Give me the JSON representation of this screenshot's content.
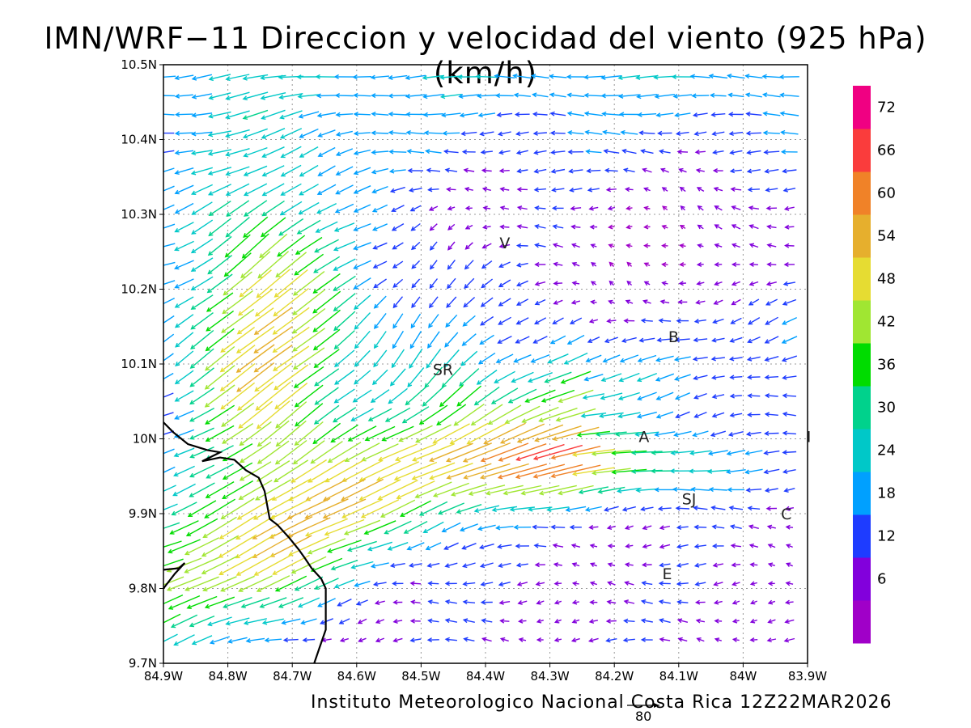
{
  "title": "IMN/WRF−11 Direccion y velocidad del viento (925 hPa)(km/h)",
  "credit": "Instituto Meteorologico Nacional Costa Rica 12Z22MAR2026",
  "reference_vector": {
    "value": "80"
  },
  "map": {
    "lon_range": [
      -84.9,
      -83.9
    ],
    "lat_range": [
      9.7,
      10.5
    ],
    "lon_ticks": [
      {
        "value": -84.9,
        "label": "84.9W"
      },
      {
        "value": -84.8,
        "label": "84.8W"
      },
      {
        "value": -84.7,
        "label": "84.7W"
      },
      {
        "value": -84.6,
        "label": "84.6W"
      },
      {
        "value": -84.5,
        "label": "84.5W"
      },
      {
        "value": -84.4,
        "label": "84.4W"
      },
      {
        "value": -84.3,
        "label": "84.3W"
      },
      {
        "value": -84.2,
        "label": "84.2W"
      },
      {
        "value": -84.1,
        "label": "84.1W"
      },
      {
        "value": -84.0,
        "label": "84W"
      },
      {
        "value": -83.9,
        "label": "83.9W"
      }
    ],
    "lat_ticks": [
      {
        "value": 9.7,
        "label": "9.7N"
      },
      {
        "value": 9.8,
        "label": "9.8N"
      },
      {
        "value": 9.9,
        "label": "9.9N"
      },
      {
        "value": 10.0,
        "label": "10N"
      },
      {
        "value": 10.1,
        "label": "10.1N"
      },
      {
        "value": 10.2,
        "label": "10.2N"
      },
      {
        "value": 10.3,
        "label": "10.3N"
      },
      {
        "value": 10.4,
        "label": "10.4N"
      },
      {
        "value": 10.5,
        "label": "10.5N"
      }
    ],
    "stations": [
      {
        "label": "V",
        "lon": -84.37,
        "lat": 10.262
      },
      {
        "label": "B",
        "lon": -84.108,
        "lat": 10.137
      },
      {
        "label": "SR",
        "lon": -84.466,
        "lat": 10.093
      },
      {
        "label": "A",
        "lon": -84.154,
        "lat": 10.003
      },
      {
        "label": "SJ",
        "lon": -84.084,
        "lat": 9.92
      },
      {
        "label": "C",
        "lon": -83.933,
        "lat": 9.9
      },
      {
        "label": "E",
        "lon": -84.118,
        "lat": 9.82
      },
      {
        "label": "I",
        "lon": -83.898,
        "lat": 10.003
      }
    ],
    "coastline": [
      [
        -84.9,
        10.022
      ],
      [
        -84.885,
        10.009
      ],
      [
        -84.862,
        9.993
      ],
      [
        -84.832,
        9.985
      ],
      [
        -84.812,
        9.982
      ],
      [
        -84.84,
        9.97
      ],
      [
        -84.812,
        9.975
      ],
      [
        -84.79,
        9.972
      ],
      [
        -84.772,
        9.958
      ],
      [
        -84.752,
        9.948
      ],
      [
        -84.743,
        9.93
      ],
      [
        -84.735,
        9.893
      ],
      [
        -84.723,
        9.885
      ],
      [
        -84.705,
        9.868
      ],
      [
        -84.69,
        9.852
      ],
      [
        -84.68,
        9.84
      ],
      [
        -84.67,
        9.827
      ],
      [
        -84.655,
        9.813
      ],
      [
        -84.648,
        9.8
      ],
      [
        -84.648,
        9.77
      ],
      [
        -84.648,
        9.745
      ],
      [
        -84.658,
        9.72
      ],
      [
        -84.666,
        9.7
      ]
    ],
    "coastline_south": [
      [
        -84.9,
        9.825
      ],
      [
        -84.876,
        9.827
      ],
      [
        -84.867,
        9.834
      ],
      [
        -84.882,
        9.82
      ],
      [
        -84.9,
        9.8
      ]
    ]
  },
  "colorbar": {
    "colors": [
      "#a000c8",
      "#8200dc",
      "#1e3cff",
      "#00a0ff",
      "#00c8c8",
      "#00d28c",
      "#00dc00",
      "#a0e632",
      "#e6dc32",
      "#e6af2d",
      "#f08228",
      "#fa3c3c",
      "#f00082"
    ],
    "labels": [
      "6",
      "12",
      "18",
      "24",
      "30",
      "36",
      "42",
      "48",
      "54",
      "60",
      "66",
      "72"
    ]
  }
}
